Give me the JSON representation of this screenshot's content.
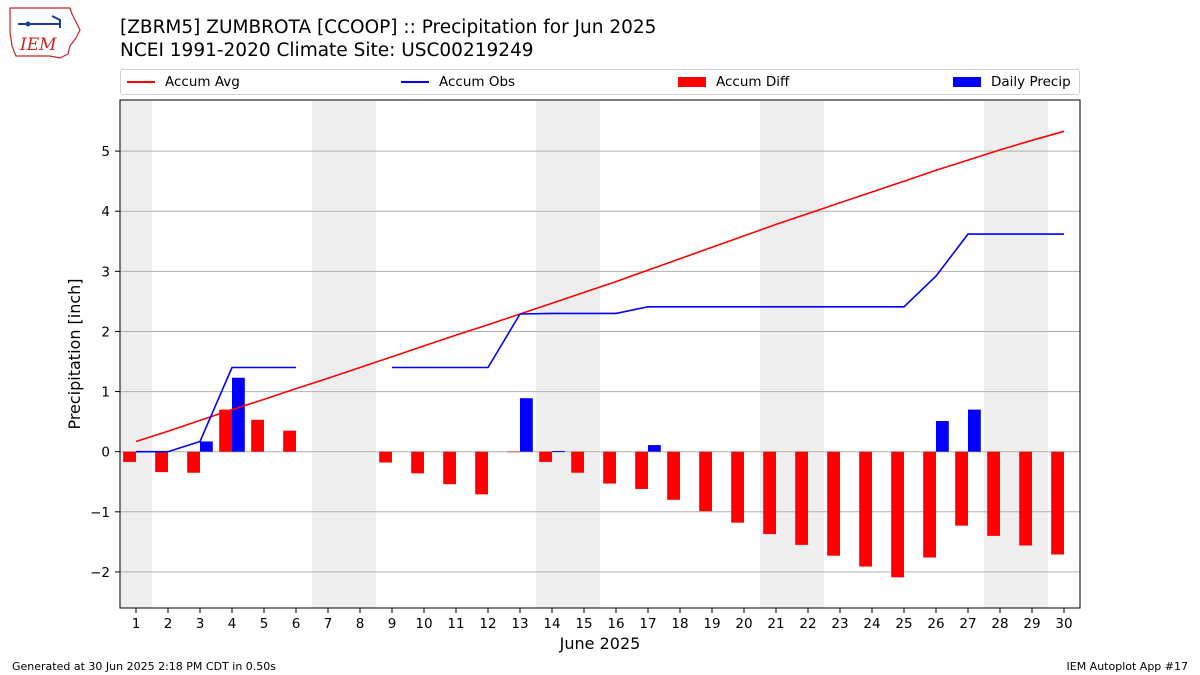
{
  "logo": {
    "text": "IEM",
    "color": "#cc2222"
  },
  "header": {
    "title": "[ZBRM5] ZUMBROTA [CCOOP] :: Precipitation for Jun 2025",
    "subtitle": "NCEI 1991-2020 Climate Site: USC00219249"
  },
  "legend": {
    "avg": {
      "label": "Accum Avg",
      "color": "#ff0000"
    },
    "obs": {
      "label": "Accum Obs",
      "color": "#0000ff"
    },
    "diff": {
      "label": "Accum Diff",
      "color": "#ff0000"
    },
    "daily": {
      "label": "Daily Precip",
      "color": "#0000ff"
    }
  },
  "footer": {
    "left": "Generated at 30 Jun 2025 2:18 PM CDT in 0.50s",
    "right": "IEM Autoplot App #17"
  },
  "chart_data": {
    "type": "bar",
    "xlabel": "June 2025",
    "ylabel": "Precipitation [inch]",
    "xlim": [
      0.5,
      30.5
    ],
    "ylim": [
      -2.6,
      5.85
    ],
    "yticks": [
      -2,
      -1,
      0,
      1,
      2,
      3,
      4,
      5
    ],
    "ytick_labels": [
      "−2",
      "−1",
      "0",
      "1",
      "2",
      "3",
      "4",
      "5"
    ],
    "grid": "horizontal",
    "legend_placement": "top",
    "weekend_shading": [
      [
        0.5,
        1.5
      ],
      [
        6.5,
        8.5
      ],
      [
        13.5,
        15.5
      ],
      [
        20.5,
        22.5
      ],
      [
        27.5,
        29.5
      ]
    ],
    "days": [
      1,
      2,
      3,
      4,
      5,
      6,
      7,
      8,
      9,
      10,
      11,
      12,
      13,
      14,
      15,
      16,
      17,
      18,
      19,
      20,
      21,
      22,
      23,
      24,
      25,
      26,
      27,
      28,
      29,
      30
    ],
    "accum_avg": [
      0.17,
      0.34,
      0.52,
      0.7,
      0.87,
      1.05,
      1.22,
      1.4,
      1.58,
      1.76,
      1.94,
      2.11,
      2.29,
      2.47,
      2.65,
      2.83,
      3.02,
      3.21,
      3.4,
      3.59,
      3.78,
      3.96,
      4.14,
      4.32,
      4.5,
      4.68,
      4.85,
      5.02,
      5.18,
      5.33
    ],
    "accum_obs": [
      0.0,
      0.0,
      0.17,
      1.4,
      1.4,
      1.4,
      null,
      null,
      1.4,
      1.4,
      1.4,
      1.4,
      2.29,
      2.3,
      2.3,
      2.3,
      2.41,
      2.41,
      2.41,
      2.41,
      2.41,
      2.41,
      2.41,
      2.41,
      2.41,
      2.92,
      3.62,
      3.62,
      3.62,
      3.62
    ],
    "accum_diff": [
      -0.17,
      -0.34,
      -0.35,
      0.7,
      0.53,
      0.35,
      null,
      null,
      -0.18,
      -0.36,
      -0.54,
      -0.71,
      -0.01,
      -0.17,
      -0.35,
      -0.53,
      -0.62,
      -0.8,
      -0.99,
      -1.18,
      -1.37,
      -1.55,
      -1.73,
      -1.91,
      -2.09,
      -1.76,
      -1.23,
      -1.4,
      -1.56,
      -1.71
    ],
    "daily_precip": [
      0.0,
      0.0,
      0.17,
      1.23,
      0.0,
      0.0,
      null,
      null,
      0.0,
      0.0,
      0.0,
      0.0,
      0.89,
      0.01,
      0.0,
      0.0,
      0.11,
      0.0,
      0.0,
      0.0,
      0.0,
      0.0,
      0.0,
      0.0,
      0.0,
      0.51,
      0.7,
      0.0,
      0.0,
      0.0
    ]
  }
}
